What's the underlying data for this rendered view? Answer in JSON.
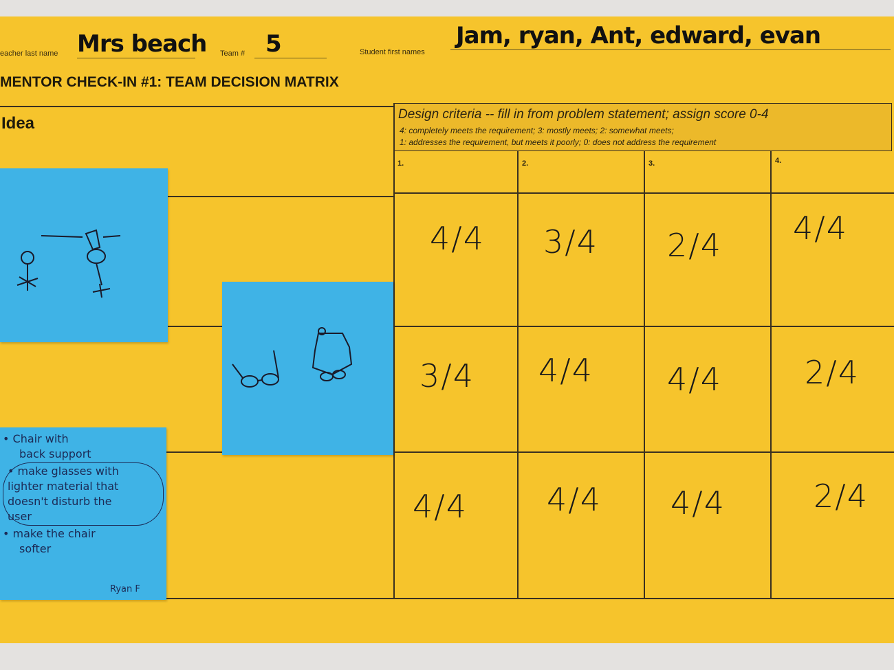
{
  "header": {
    "teacher_label": "eacher last name",
    "teacher_value": "Mrs beach",
    "team_label": "Team #",
    "team_value": "5",
    "students_label": "Student first names",
    "students_value": "Jam, ryan, Ant, edward, evan",
    "title": "MENTOR CHECK-IN #1: TEAM DECISION MATRIX"
  },
  "matrix": {
    "idea_header": "Idea",
    "criteria_header": "Design criteria -- fill in from problem statement; assign score 0-4",
    "criteria_scale_1": "4: completely meets the requirement;  3: mostly meets; 2: somewhat meets;",
    "criteria_scale_2": "1: addresses the requirement, but meets it poorly; 0: does not address the requirement",
    "columns": [
      "1.",
      "2.",
      "3.",
      "4."
    ],
    "rows": [
      [
        "4/4",
        "3/4",
        "2/4",
        "4/4"
      ],
      [
        "3/4",
        "4/4",
        "4/4",
        "2/4"
      ],
      [
        "4/4",
        "4/4",
        "4/4",
        "2/4"
      ]
    ]
  },
  "notes": {
    "note3_lines": [
      "• Chair with",
      "back support",
      "• make glasses with",
      "lighter material that",
      "doesn't disturb the",
      "user",
      "• make the chair",
      "softer"
    ],
    "note3_signature": "Ryan F"
  },
  "colors": {
    "paper": "#f6c42c",
    "sticky_note": "#3fb3e6",
    "background": "#e4e2e0"
  }
}
